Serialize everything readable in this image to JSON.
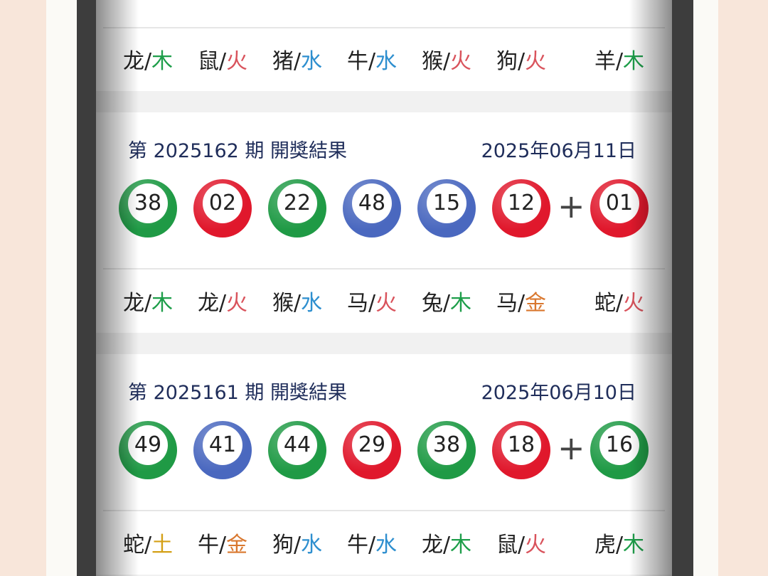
{
  "colors": {
    "green": "#1f9a45",
    "red": "#e0182c",
    "blue": "#4a68bf",
    "wood": "#1e9e4a",
    "fire": "#d9535c",
    "water": "#2e8fcf",
    "metal": "#d9772e",
    "earth": "#d4a017"
  },
  "top_zodiac": [
    [
      "龙",
      "木"
    ],
    [
      "鼠",
      "火"
    ],
    [
      "猪",
      "水"
    ],
    [
      "牛",
      "水"
    ],
    [
      "猴",
      "火"
    ],
    [
      "狗",
      "火"
    ],
    [
      "羊",
      "木"
    ]
  ],
  "draws": [
    {
      "title": "第 2025162 期  開獎結果",
      "date": "2025年06月11日",
      "plus": "+",
      "balls": [
        [
          "38",
          "green"
        ],
        [
          "02",
          "red"
        ],
        [
          "22",
          "green"
        ],
        [
          "48",
          "blue"
        ],
        [
          "15",
          "blue"
        ],
        [
          "12",
          "red"
        ],
        [
          "01",
          "red"
        ]
      ],
      "zodiac": [
        [
          "龙",
          "木"
        ],
        [
          "龙",
          "火"
        ],
        [
          "猴",
          "水"
        ],
        [
          "马",
          "火"
        ],
        [
          "兔",
          "木"
        ],
        [
          "马",
          "金"
        ],
        [
          "蛇",
          "火"
        ]
      ]
    },
    {
      "title": "第 2025161 期  開獎結果",
      "date": "2025年06月10日",
      "plus": "+",
      "balls": [
        [
          "49",
          "green"
        ],
        [
          "41",
          "blue"
        ],
        [
          "44",
          "green"
        ],
        [
          "29",
          "red"
        ],
        [
          "38",
          "green"
        ],
        [
          "18",
          "red"
        ],
        [
          "16",
          "green"
        ]
      ],
      "zodiac": [
        [
          "蛇",
          "土"
        ],
        [
          "牛",
          "金"
        ],
        [
          "狗",
          "水"
        ],
        [
          "牛",
          "水"
        ],
        [
          "龙",
          "木"
        ],
        [
          "鼠",
          "火"
        ],
        [
          "虎",
          "木"
        ]
      ]
    }
  ]
}
